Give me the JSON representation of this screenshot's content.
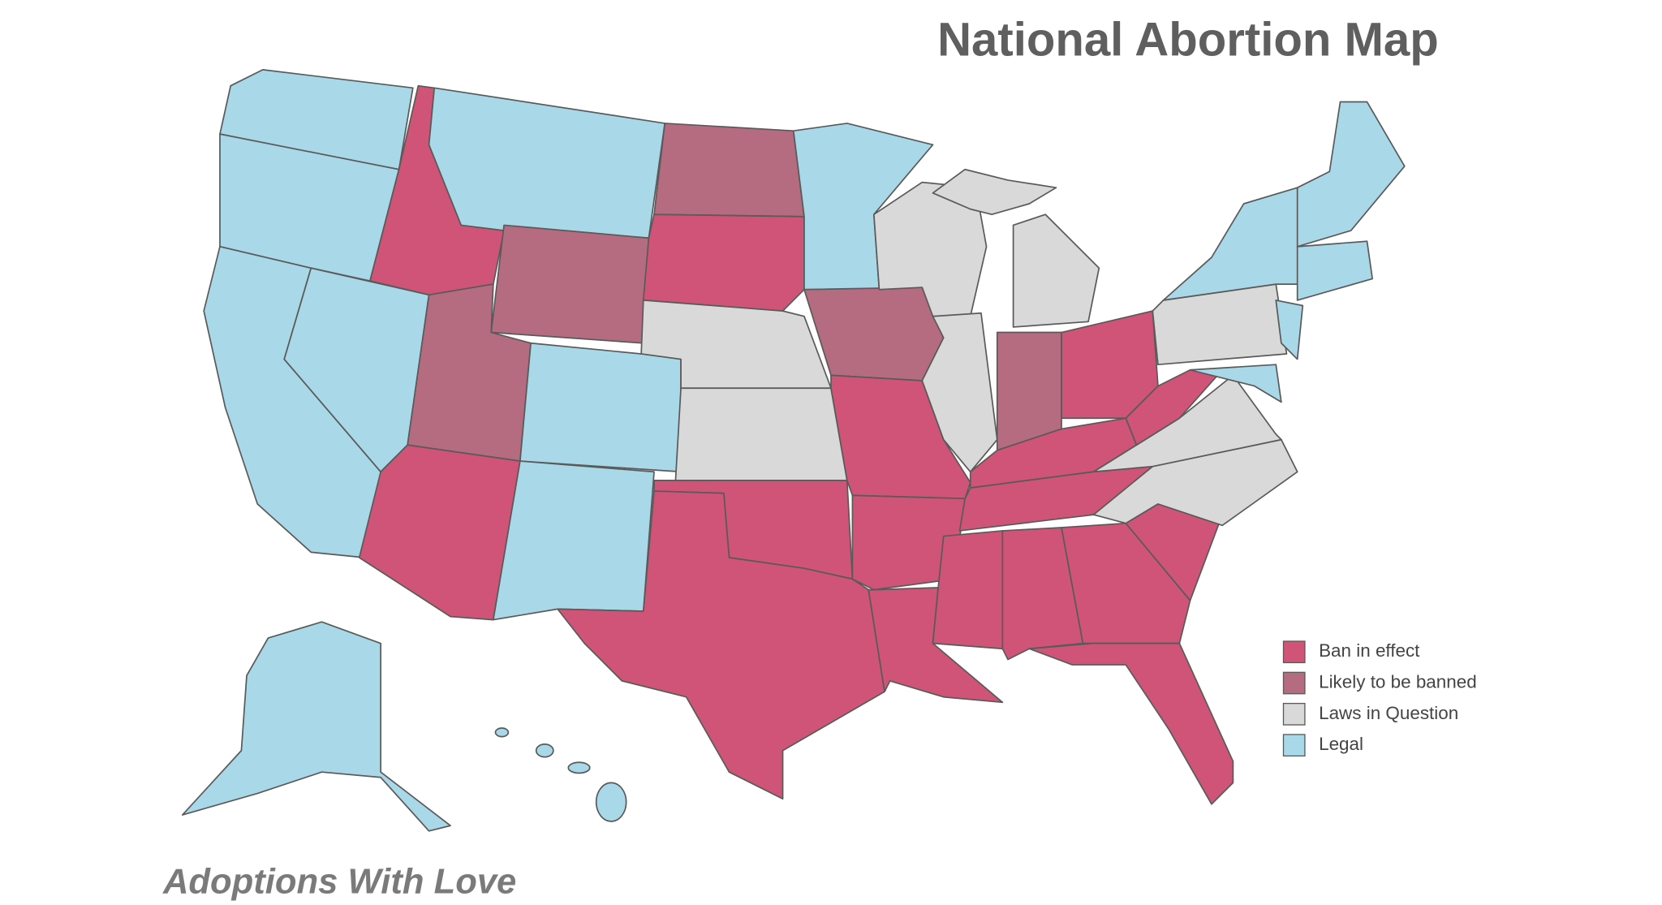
{
  "title": "National Abortion Map",
  "legend": {
    "items": [
      {
        "label": "Ban in effect",
        "color": "#cf5478"
      },
      {
        "label": "Likely to be banned",
        "color": "#b56c80"
      },
      {
        "label": "Laws in Question",
        "color": "#d9d9d9"
      },
      {
        "label": "Legal",
        "color": "#a9d8e9"
      }
    ]
  },
  "footer": "Adoptions With Love"
}
